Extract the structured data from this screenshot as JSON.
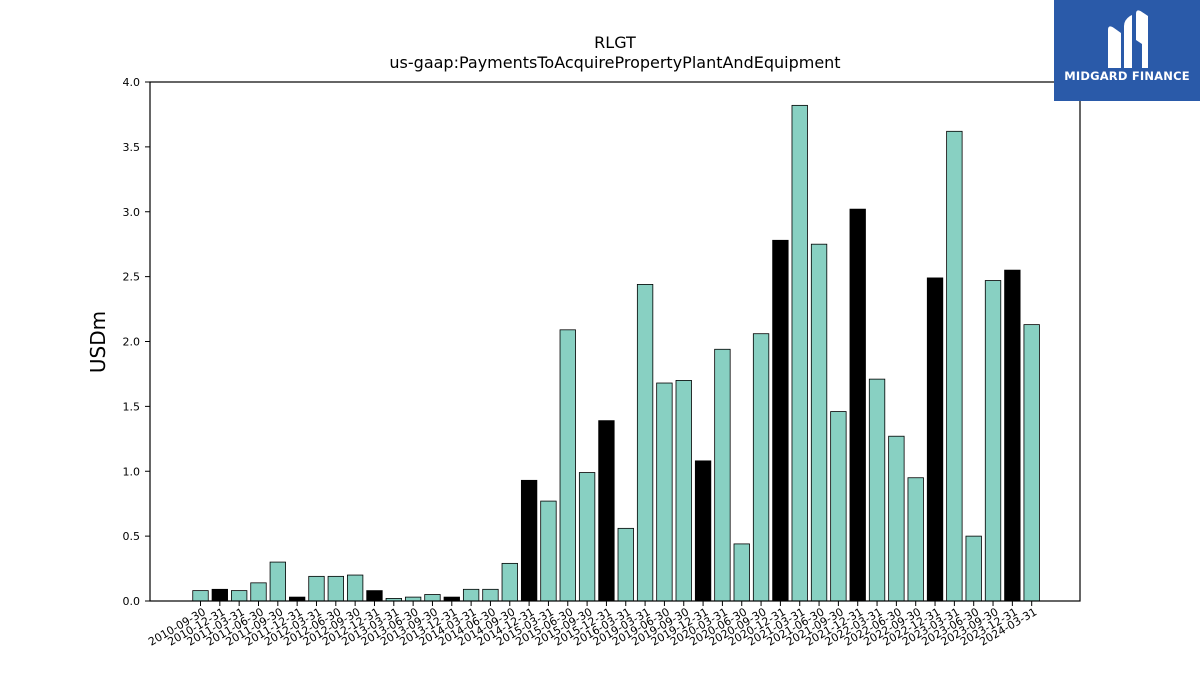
{
  "logo": {
    "text": "MIDGARD FINANCE",
    "icon": "midgard-logo-icon",
    "background": "#2a5aa9"
  },
  "chart_data": {
    "type": "bar",
    "title": "RLGT",
    "subtitle": "us-gaap:PaymentsToAcquirePropertyPlantAndEquipment",
    "xlabel": "",
    "ylabel": "USDm",
    "ylim": [
      0,
      4.0
    ],
    "yticks": [
      "0.0",
      "0.5",
      "1.0",
      "1.5",
      "2.0",
      "2.5",
      "3.0",
      "3.5",
      "4.0"
    ],
    "grid": false,
    "colors": {
      "fiscal_year_end": "#000000",
      "quarter": "#88d0c2"
    },
    "categories": [
      "2010-09-30",
      "2010-12-31",
      "2011-03-31",
      "2011-06-30",
      "2011-09-30",
      "2011-12-31",
      "2012-03-31",
      "2012-06-30",
      "2012-09-30",
      "2012-12-31",
      "2013-03-31",
      "2013-06-30",
      "2013-09-30",
      "2013-12-31",
      "2014-03-31",
      "2014-06-30",
      "2014-09-30",
      "2014-12-31",
      "2015-03-31",
      "2015-06-30",
      "2015-09-30",
      "2015-12-31",
      "2016-03-31",
      "2019-03-31",
      "2019-06-30",
      "2019-09-30",
      "2019-12-31",
      "2020-03-31",
      "2020-06-30",
      "2020-09-30",
      "2020-12-31",
      "2021-03-31",
      "2021-06-30",
      "2021-09-30",
      "2021-12-31",
      "2022-03-31",
      "2022-06-30",
      "2022-09-30",
      "2022-12-31",
      "2023-03-31",
      "2023-06-30",
      "2023-09-30",
      "2023-12-31",
      "2024-03-31"
    ],
    "values": [
      0.08,
      0.09,
      0.08,
      0.14,
      0.3,
      0.03,
      0.19,
      0.19,
      0.2,
      0.08,
      0.02,
      0.03,
      0.05,
      0.03,
      0.09,
      0.09,
      0.29,
      0.93,
      0.77,
      2.09,
      0.99,
      1.39,
      0.56,
      2.44,
      1.68,
      1.7,
      1.08,
      1.94,
      0.44,
      2.06,
      2.78,
      3.82,
      2.75,
      1.46,
      3.02,
      1.71,
      1.27,
      0.95,
      2.49,
      3.62,
      0.5,
      2.47,
      2.55,
      2.13
    ],
    "highlight": [
      false,
      true,
      false,
      false,
      false,
      true,
      false,
      false,
      false,
      true,
      false,
      false,
      false,
      true,
      false,
      false,
      false,
      true,
      false,
      false,
      false,
      true,
      false,
      false,
      false,
      false,
      true,
      false,
      false,
      false,
      true,
      false,
      false,
      false,
      true,
      false,
      false,
      false,
      true,
      false,
      false,
      false,
      true,
      false
    ]
  }
}
